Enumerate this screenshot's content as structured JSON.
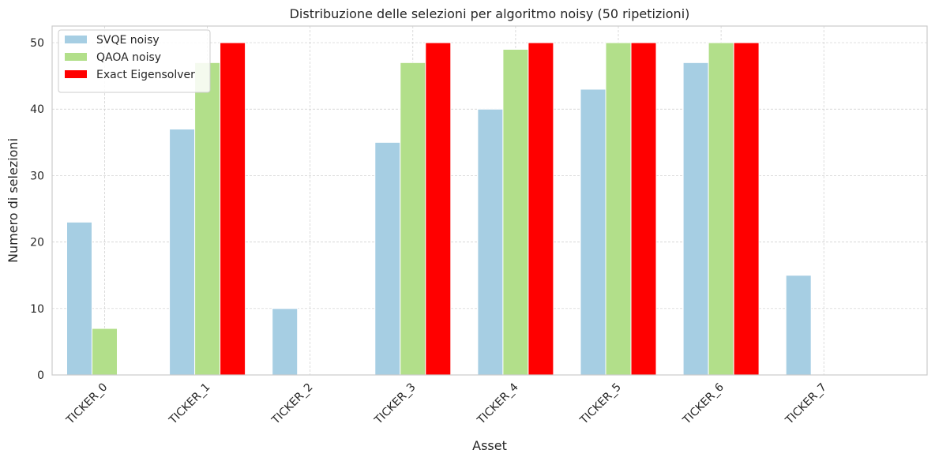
{
  "chart_data": {
    "type": "bar",
    "title": "Distribuzione delle selezioni per algoritmo noisy (50 ripetizioni)",
    "xlabel": "Asset",
    "ylabel": "Numero di selezioni",
    "categories": [
      "TICKER_0",
      "TICKER_1",
      "TICKER_2",
      "TICKER_3",
      "TICKER_4",
      "TICKER_5",
      "TICKER_6",
      "TICKER_7"
    ],
    "series": [
      {
        "name": "SVQE noisy",
        "color": "#a6cee3",
        "values": [
          23,
          37,
          10,
          35,
          40,
          43,
          47,
          15
        ]
      },
      {
        "name": "QAOA noisy",
        "color": "#b2df8a",
        "values": [
          7,
          47,
          0,
          47,
          49,
          50,
          50,
          0
        ]
      },
      {
        "name": "Exact Eigensolver",
        "color": "#ff0000",
        "values": [
          0,
          50,
          0,
          50,
          50,
          50,
          50,
          0
        ]
      }
    ],
    "ylim": [
      0,
      52.5
    ],
    "yticks": [
      0,
      10,
      20,
      30,
      40,
      50
    ],
    "grid": true,
    "legend_position": "top-left",
    "xtick_rotation": 45
  }
}
